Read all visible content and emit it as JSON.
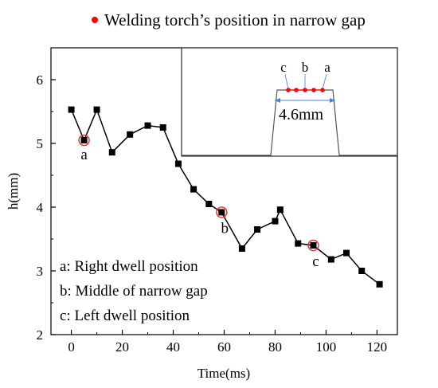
{
  "legend": {
    "label": "Welding torch’s position in narrow gap",
    "marker_color": "#ff0000"
  },
  "chart_data": {
    "type": "line",
    "title": "",
    "xlabel": "Time(ms)",
    "ylabel": "h(mm)",
    "xlim": [
      -8,
      128
    ],
    "ylim": [
      2,
      6.5
    ],
    "x_ticks": [
      0,
      20,
      40,
      60,
      80,
      100,
      120
    ],
    "y_ticks": [
      2,
      3,
      4,
      5,
      6
    ],
    "x_tick_labels": [
      "0",
      "20",
      "40",
      "60",
      "80",
      "100",
      "120"
    ],
    "y_tick_labels": [
      "2",
      "3",
      "4",
      "5",
      "6"
    ],
    "grid": false,
    "series": [
      {
        "color": "#000000",
        "marker": "square",
        "x": [
          0,
          5,
          10,
          16,
          23,
          30,
          36,
          42,
          48,
          54,
          59,
          67,
          73,
          80,
          82,
          89,
          95,
          102,
          108,
          114,
          121
        ],
        "y": [
          5.53,
          5.05,
          5.53,
          4.86,
          5.14,
          5.28,
          5.25,
          4.68,
          4.28,
          4.05,
          3.92,
          3.35,
          3.65,
          3.78,
          3.96,
          3.43,
          3.4,
          3.18,
          3.28,
          3.0,
          2.79
        ]
      }
    ],
    "highlighted_points": [
      {
        "label": "a",
        "x": 5,
        "y": 5.05
      },
      {
        "label": "b",
        "x": 59,
        "y": 3.92
      },
      {
        "label": "c",
        "x": 95,
        "y": 3.4
      }
    ],
    "annotations": [
      "a: Right dwell position",
      "b: Middle of narrow gap",
      "c: Left dwell position"
    ]
  },
  "inset": {
    "labels": [
      "c",
      "b",
      "a"
    ],
    "dimension": "4.6mm",
    "dot_color": "#ff0000",
    "dimension_color": "#4a7fd4"
  }
}
